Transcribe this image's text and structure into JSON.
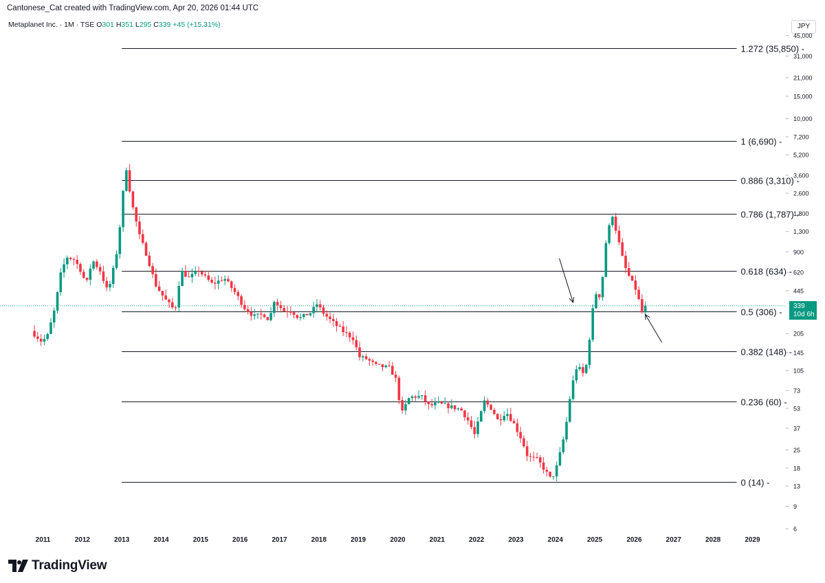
{
  "header": {
    "attribution": "Cantonese_Cat created with TradingView.com, Apr 20, 2026 01:44 UTC"
  },
  "legend": {
    "symbol": "Metaplanet Inc. · 1M · TSE",
    "open_label": "O",
    "open": "301",
    "high_label": "H",
    "high": "351",
    "low_label": "L",
    "low": "295",
    "close_label": "C",
    "close": "339",
    "change": "+45 (+15.31%)"
  },
  "currency": "JPY",
  "last_price": {
    "price": "339",
    "countdown": "10d 6h"
  },
  "brand": "TradingView",
  "colors": {
    "up": "#089981",
    "down": "#F23645",
    "line": "#131722",
    "grid": "#e0e3eb"
  },
  "chart_data": {
    "type": "candlestick",
    "scale": "log",
    "interval": "1M",
    "x_axis_labels": [
      "2011",
      "2012",
      "2013",
      "2014",
      "2015",
      "2016",
      "2017",
      "2018",
      "2019",
      "2020",
      "2021",
      "2022",
      "2023",
      "2024",
      "2025",
      "2026",
      "2027",
      "2028",
      "2029"
    ],
    "y_axis_labels": [
      "45,000",
      "31,000",
      "21,000",
      "15,000",
      "10,000",
      "7,200",
      "5,200",
      "3,600",
      "2,600",
      "1,800",
      "1,300",
      "900",
      "620",
      "445",
      "205",
      "145",
      "105",
      "73",
      "53",
      "37",
      "25",
      "18",
      "13",
      "9",
      "6"
    ],
    "y_axis_values": [
      45000,
      31000,
      21000,
      15000,
      10000,
      7200,
      5200,
      3600,
      2600,
      1800,
      1300,
      900,
      620,
      445,
      205,
      145,
      105,
      73,
      53,
      37,
      25,
      18,
      13,
      9,
      6
    ],
    "fib_levels": [
      {
        "label": "1.272 (35,850)",
        "value": 35850
      },
      {
        "label": "1 (6,690)",
        "value": 6690
      },
      {
        "label": "0.886 (3,310)",
        "value": 3310
      },
      {
        "label": "0.786 (1,787)",
        "value": 1787
      },
      {
        "label": "0.618 (634)",
        "value": 634
      },
      {
        "label": "0.5 (306)",
        "value": 306
      },
      {
        "label": "0.382 (148)",
        "value": 148
      },
      {
        "label": "0.236 (60)",
        "value": 60
      },
      {
        "label": "0 (14)",
        "value": 14
      }
    ],
    "fib_start_year": 2013.0,
    "fib_end_year": 2028.6,
    "last_close": 339,
    "annotations": [
      {
        "type": "arrow",
        "from": [
          2024.1,
          800
        ],
        "to": [
          2024.45,
          360
        ]
      },
      {
        "type": "arrow",
        "from": [
          2026.7,
          175
        ],
        "to": [
          2026.28,
          290
        ]
      }
    ],
    "waypoints": [
      [
        2010.7,
        215
      ],
      [
        2010.95,
        180
      ],
      [
        2011.1,
        190
      ],
      [
        2011.3,
        320
      ],
      [
        2011.45,
        600
      ],
      [
        2011.6,
        820
      ],
      [
        2011.8,
        780
      ],
      [
        2011.95,
        650
      ],
      [
        2012.1,
        500
      ],
      [
        2012.25,
        780
      ],
      [
        2012.45,
        640
      ],
      [
        2012.65,
        430
      ],
      [
        2012.85,
        800
      ],
      [
        2013.0,
        1900
      ],
      [
        2013.05,
        3100
      ],
      [
        2013.1,
        4400
      ],
      [
        2013.25,
        2200
      ],
      [
        2013.45,
        1200
      ],
      [
        2013.65,
        820
      ],
      [
        2013.85,
        500
      ],
      [
        2014.1,
        380
      ],
      [
        2014.35,
        310
      ],
      [
        2014.5,
        640
      ],
      [
        2014.7,
        560
      ],
      [
        2014.95,
        640
      ],
      [
        2015.3,
        500
      ],
      [
        2015.6,
        560
      ],
      [
        2015.9,
        420
      ],
      [
        2016.1,
        330
      ],
      [
        2016.35,
        280
      ],
      [
        2016.6,
        290
      ],
      [
        2016.75,
        260
      ],
      [
        2016.85,
        380
      ],
      [
        2017.1,
        310
      ],
      [
        2017.3,
        310
      ],
      [
        2017.5,
        270
      ],
      [
        2017.8,
        300
      ],
      [
        2017.95,
        350
      ],
      [
        2018.1,
        300
      ],
      [
        2018.3,
        260
      ],
      [
        2018.6,
        215
      ],
      [
        2018.9,
        185
      ],
      [
        2019.0,
        135
      ],
      [
        2019.2,
        130
      ],
      [
        2019.45,
        115
      ],
      [
        2019.8,
        110
      ],
      [
        2019.95,
        90
      ],
      [
        2020.1,
        48
      ],
      [
        2020.3,
        65
      ],
      [
        2020.6,
        66
      ],
      [
        2020.8,
        55
      ],
      [
        2021.0,
        58
      ],
      [
        2021.3,
        55
      ],
      [
        2021.6,
        52
      ],
      [
        2021.8,
        42
      ],
      [
        2021.95,
        33
      ],
      [
        2022.2,
        60
      ],
      [
        2022.4,
        52
      ],
      [
        2022.55,
        42
      ],
      [
        2022.75,
        50
      ],
      [
        2022.95,
        40
      ],
      [
        2023.15,
        30
      ],
      [
        2023.3,
        22
      ],
      [
        2023.55,
        21
      ],
      [
        2023.75,
        17
      ],
      [
        2023.9,
        14.5
      ],
      [
        2024.05,
        19
      ],
      [
        2024.25,
        35
      ],
      [
        2024.4,
        75
      ],
      [
        2024.55,
        115
      ],
      [
        2024.75,
        95
      ],
      [
        2024.9,
        230
      ],
      [
        2025.0,
        430
      ],
      [
        2025.15,
        400
      ],
      [
        2025.3,
        1200
      ],
      [
        2025.45,
        1750
      ],
      [
        2025.6,
        1100
      ],
      [
        2025.75,
        700
      ],
      [
        2025.9,
        550
      ],
      [
        2026.05,
        450
      ],
      [
        2026.2,
        300
      ],
      [
        2026.3,
        339
      ]
    ]
  }
}
